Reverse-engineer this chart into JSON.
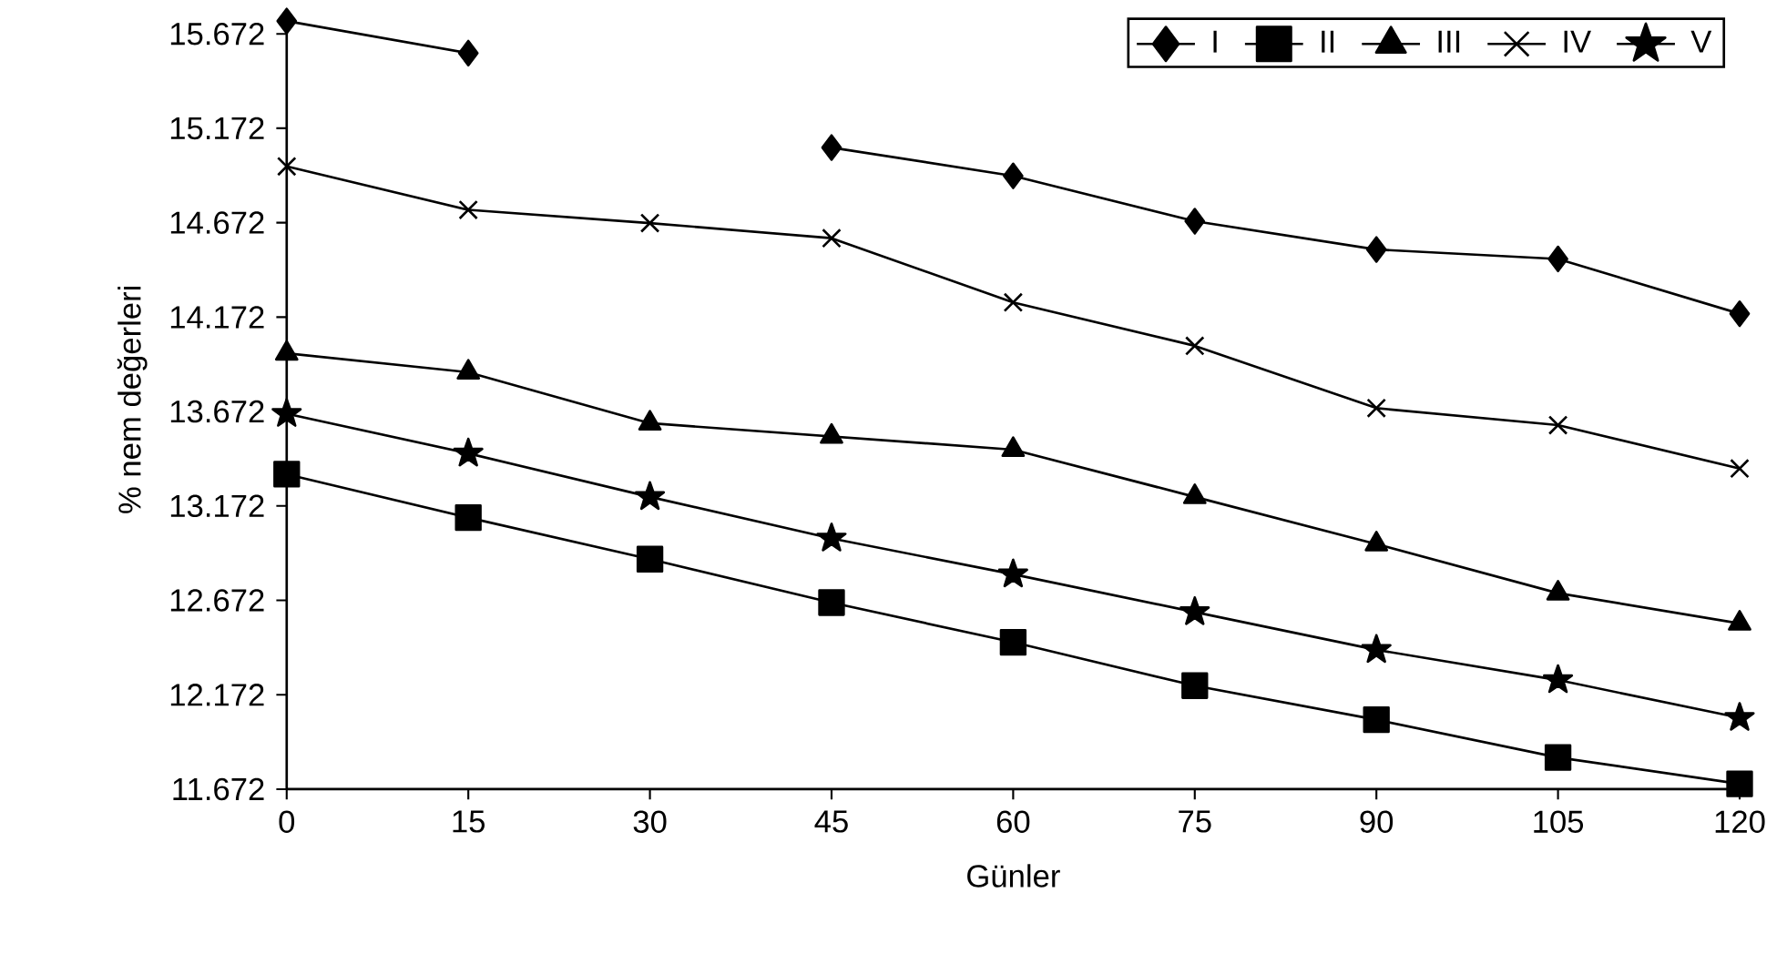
{
  "chart_data": {
    "type": "line",
    "xlabel": "Günler",
    "ylabel": "% nem değerleri",
    "x": [
      0,
      15,
      30,
      45,
      60,
      75,
      90,
      105,
      120
    ],
    "xlim": [
      0,
      120
    ],
    "xticks": [
      0,
      15,
      30,
      45,
      60,
      75,
      90,
      105,
      120
    ],
    "ylim": [
      11.672,
      15.8
    ],
    "yticks": [
      11.672,
      12.172,
      12.672,
      13.172,
      13.672,
      14.172,
      14.672,
      15.172,
      15.672
    ],
    "legend": "top right",
    "series": [
      {
        "name": "I",
        "color": "#000000",
        "marker": "diamond",
        "values": [
          15.74,
          15.57,
          null,
          15.07,
          14.92,
          14.68,
          14.53,
          14.48,
          14.19
        ]
      },
      {
        "name": "II",
        "color": "#000000",
        "marker": "square",
        "values": [
          13.34,
          13.11,
          12.89,
          12.66,
          12.45,
          12.22,
          12.04,
          11.84,
          11.7
        ]
      },
      {
        "name": "III",
        "color": "#000000",
        "marker": "triangle",
        "values": [
          13.98,
          13.88,
          13.61,
          13.54,
          13.47,
          13.22,
          12.97,
          12.71,
          12.55
        ]
      },
      {
        "name": "IV",
        "color": "#000000",
        "marker": "cross",
        "values": [
          14.97,
          14.74,
          14.67,
          14.59,
          14.25,
          14.02,
          13.69,
          13.6,
          13.37
        ]
      },
      {
        "name": "V",
        "color": "#000000",
        "marker": "star",
        "values": [
          13.66,
          13.45,
          13.22,
          13.0,
          12.81,
          12.61,
          12.41,
          12.25,
          12.05
        ]
      }
    ]
  }
}
